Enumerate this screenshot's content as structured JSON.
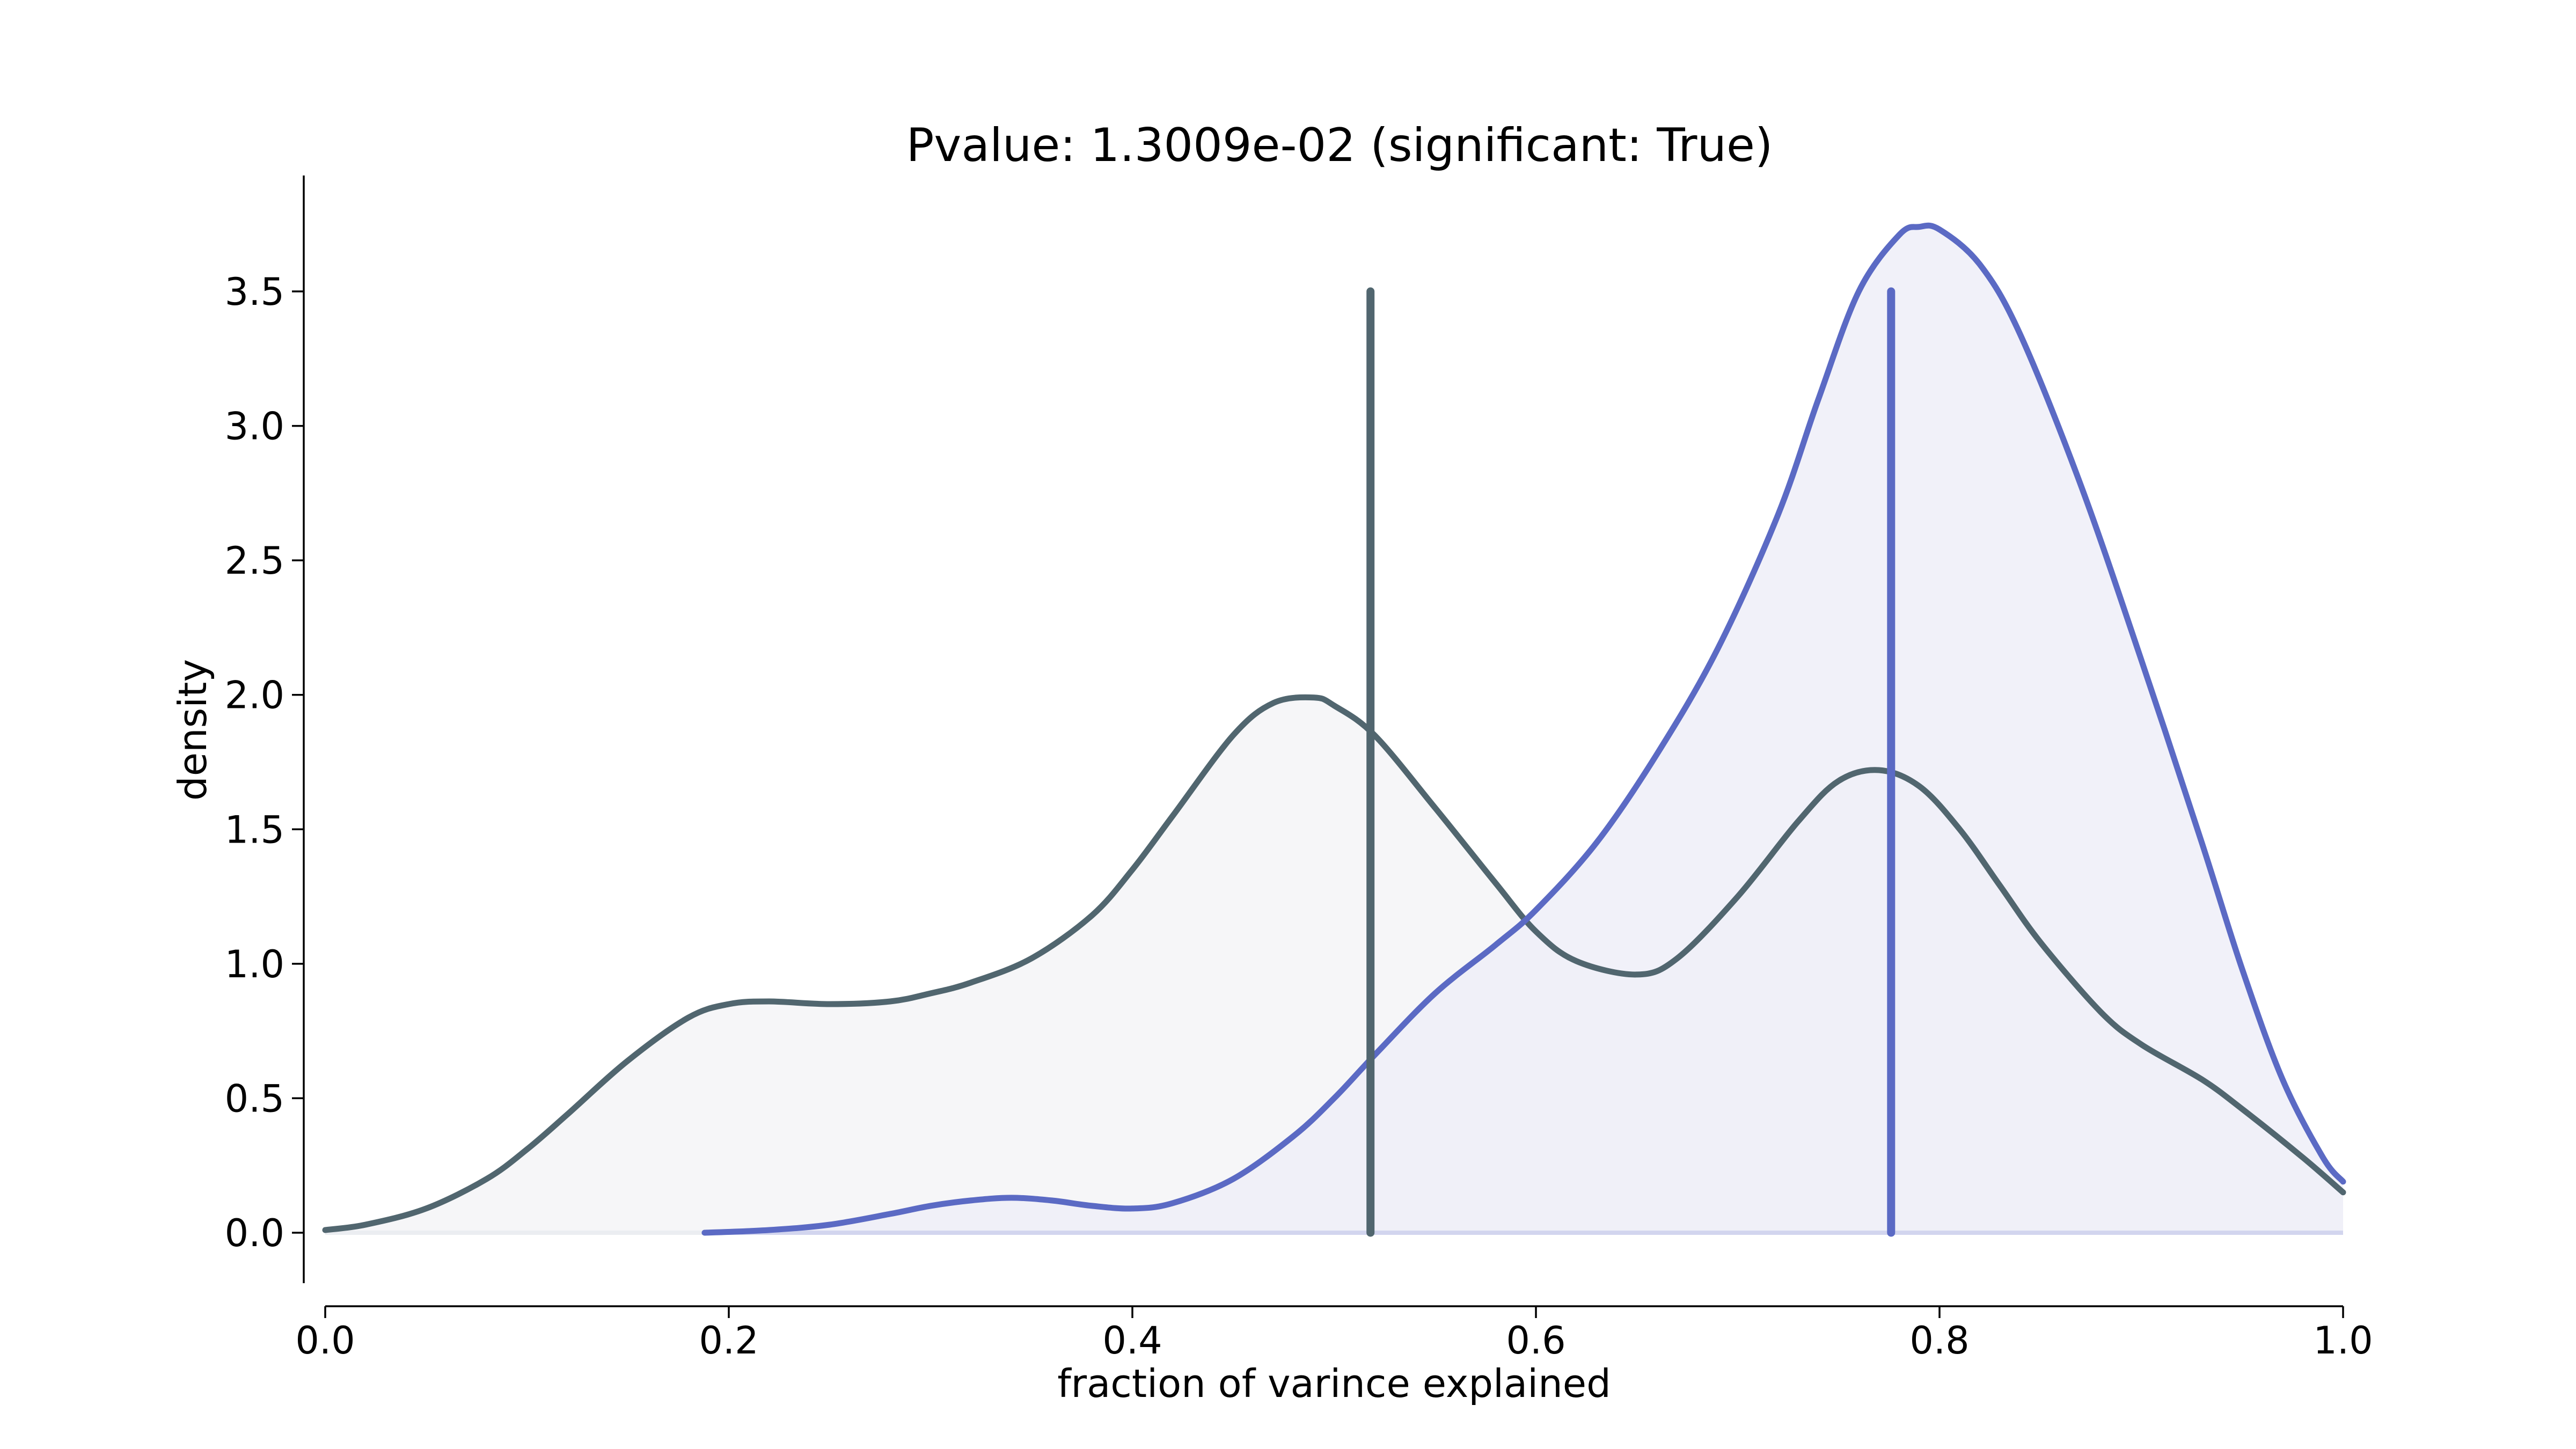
{
  "chart_data": {
    "type": "area",
    "title": "Pvalue: 1.3009e-02 (significant: True)",
    "xlabel": "fraction of varince explained",
    "ylabel": "density",
    "xlim": [
      0.0,
      1.0
    ],
    "ylim": [
      -0.18,
      3.9
    ],
    "xticks": [
      0.0,
      0.2,
      0.4,
      0.6,
      0.8,
      1.0
    ],
    "xtick_labels": [
      "0.0",
      "0.2",
      "0.4",
      "0.6",
      "0.8",
      "1.0"
    ],
    "yticks": [
      0.0,
      0.5,
      1.0,
      1.5,
      2.0,
      2.5,
      3.0,
      3.5
    ],
    "ytick_labels": [
      "0.0",
      "0.5",
      "1.0",
      "1.5",
      "2.0",
      "2.5",
      "3.0",
      "3.5"
    ],
    "grid": false,
    "legend": "none",
    "series": [
      {
        "color": "#51666f",
        "fill": "#f4f5f7",
        "mean": 0.518,
        "x": [
          0.0,
          0.02,
          0.05,
          0.08,
          0.1,
          0.12,
          0.15,
          0.18,
          0.2,
          0.22,
          0.25,
          0.28,
          0.3,
          0.32,
          0.35,
          0.38,
          0.4,
          0.42,
          0.45,
          0.47,
          0.49,
          0.5,
          0.52,
          0.55,
          0.58,
          0.6,
          0.62,
          0.65,
          0.67,
          0.7,
          0.73,
          0.75,
          0.77,
          0.79,
          0.81,
          0.83,
          0.85,
          0.88,
          0.9,
          0.93,
          0.95,
          0.98,
          1.0
        ],
        "y": [
          0.01,
          0.03,
          0.09,
          0.2,
          0.31,
          0.44,
          0.64,
          0.8,
          0.85,
          0.86,
          0.85,
          0.86,
          0.89,
          0.93,
          1.02,
          1.18,
          1.35,
          1.55,
          1.85,
          1.97,
          1.99,
          1.96,
          1.85,
          1.58,
          1.3,
          1.12,
          1.01,
          0.96,
          1.02,
          1.25,
          1.53,
          1.68,
          1.72,
          1.66,
          1.5,
          1.29,
          1.08,
          0.82,
          0.7,
          0.57,
          0.46,
          0.28,
          0.15
        ]
      },
      {
        "color": "#5b6ac4",
        "fill": "#eeeff8",
        "mean": 0.776,
        "x": [
          0.188,
          0.22,
          0.25,
          0.28,
          0.3,
          0.32,
          0.34,
          0.36,
          0.38,
          0.4,
          0.42,
          0.45,
          0.48,
          0.5,
          0.52,
          0.55,
          0.58,
          0.6,
          0.63,
          0.66,
          0.69,
          0.72,
          0.74,
          0.76,
          0.78,
          0.79,
          0.8,
          0.82,
          0.84,
          0.87,
          0.9,
          0.93,
          0.95,
          0.97,
          0.99,
          1.0
        ],
        "y": [
          0.0,
          0.01,
          0.03,
          0.07,
          0.1,
          0.12,
          0.13,
          0.12,
          0.1,
          0.09,
          0.11,
          0.2,
          0.36,
          0.5,
          0.66,
          0.89,
          1.07,
          1.2,
          1.45,
          1.78,
          2.17,
          2.67,
          3.1,
          3.5,
          3.71,
          3.74,
          3.73,
          3.6,
          3.34,
          2.78,
          2.13,
          1.45,
          0.98,
          0.57,
          0.28,
          0.19
        ]
      }
    ],
    "baseline_colors": [
      "#ebedf1",
      "#d2d5ee"
    ]
  }
}
